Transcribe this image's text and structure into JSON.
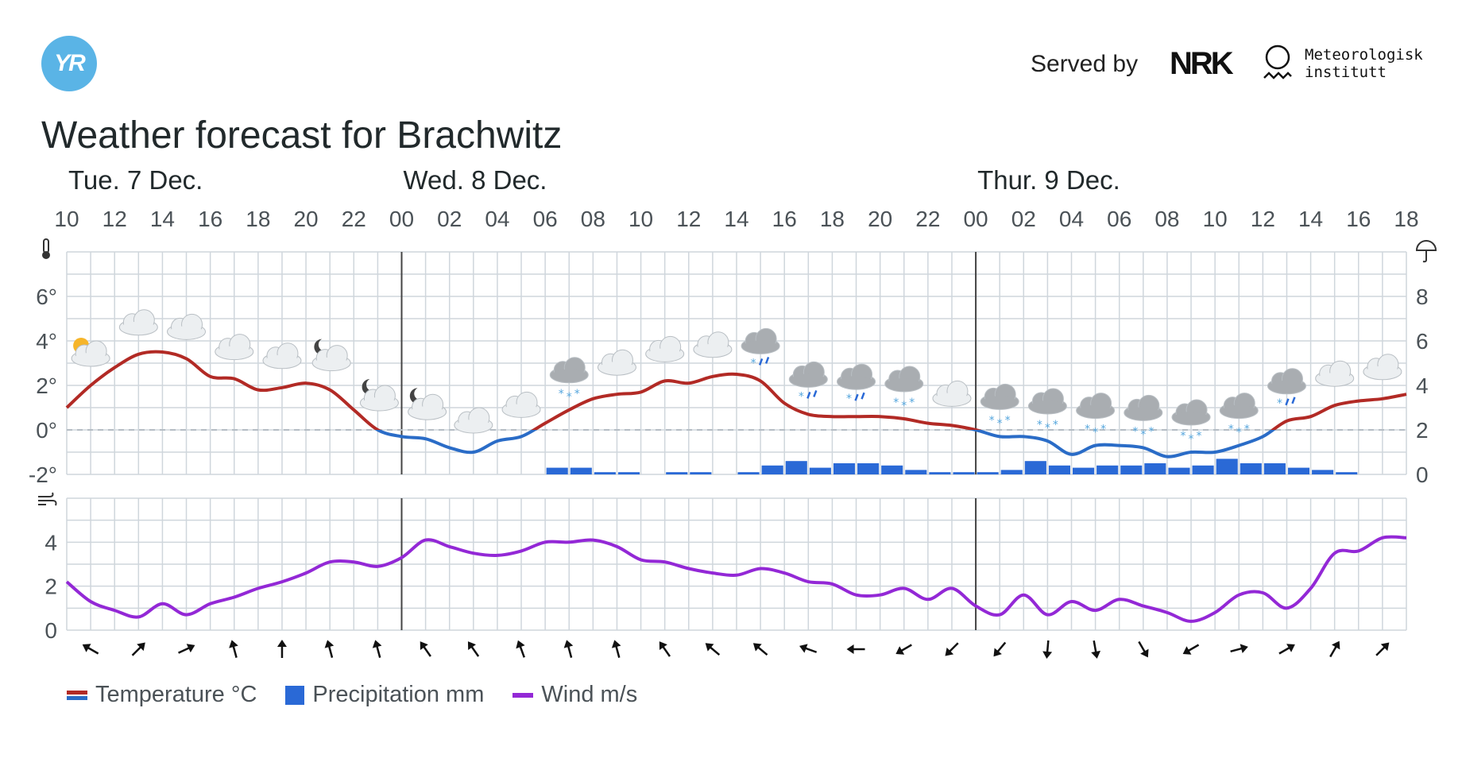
{
  "header": {
    "logo_text": "YR",
    "served_by": "Served by",
    "nrk_text": "NRK",
    "met_line1": "Meteorologisk",
    "met_line2": "institutt"
  },
  "title": "Weather forecast for Brachwitz",
  "legend": {
    "temperature": "Temperature °C",
    "precipitation": "Precipitation mm",
    "wind": "Wind m/s"
  },
  "colors": {
    "temp_warm": "#b22a25",
    "temp_cold": "#2a6cc7",
    "precip": "#2a69d6",
    "wind": "#9328d6",
    "grid": "#cfd6dc",
    "axis_text": "#4b5257"
  },
  "chart_data": {
    "type": "line",
    "days": [
      {
        "label": "Tue. 7 Dec.",
        "start_hour": 10
      },
      {
        "label": "Wed. 8 Dec.",
        "start_hour": 24
      },
      {
        "label": "Thur. 9 Dec.",
        "start_hour": 48
      }
    ],
    "x_start_hour": 10,
    "x_end_hour": 66,
    "x_tick_labels": [
      "10",
      "12",
      "14",
      "16",
      "18",
      "20",
      "22",
      "00",
      "02",
      "04",
      "06",
      "08",
      "10",
      "12",
      "14",
      "16",
      "18",
      "20",
      "22",
      "00",
      "02",
      "04",
      "06",
      "08",
      "10",
      "12",
      "14",
      "16",
      "18"
    ],
    "temperature": {
      "name": "Temperature °C",
      "unit": "°C",
      "ylim": [
        -2,
        8
      ],
      "y_ticks": [
        "-2°",
        "0°",
        "2°",
        "4°",
        "6°"
      ],
      "hours": [
        10,
        11,
        12,
        13,
        14,
        15,
        16,
        17,
        18,
        19,
        20,
        21,
        22,
        23,
        24,
        25,
        26,
        27,
        28,
        29,
        30,
        31,
        32,
        33,
        34,
        35,
        36,
        37,
        38,
        39,
        40,
        41,
        42,
        43,
        44,
        45,
        46,
        47,
        48,
        49,
        50,
        51,
        52,
        53,
        54,
        55,
        56,
        57,
        58,
        59,
        60,
        61,
        62,
        63,
        64,
        65,
        66
      ],
      "values": [
        1.0,
        2.0,
        2.8,
        3.4,
        3.5,
        3.2,
        2.4,
        2.3,
        1.8,
        1.9,
        2.1,
        1.8,
        0.9,
        0.0,
        -0.3,
        -0.4,
        -0.8,
        -1.0,
        -0.5,
        -0.3,
        0.3,
        0.9,
        1.4,
        1.6,
        1.7,
        2.2,
        2.1,
        2.4,
        2.5,
        2.2,
        1.2,
        0.7,
        0.6,
        0.6,
        0.6,
        0.5,
        0.3,
        0.2,
        0.0,
        -0.3,
        -0.3,
        -0.5,
        -1.1,
        -0.7,
        -0.7,
        -0.8,
        -1.2,
        -1.0,
        -1.0,
        -0.7,
        -0.3,
        0.4,
        0.6,
        1.1,
        1.3,
        1.4,
        1.6
      ]
    },
    "precipitation": {
      "name": "Precipitation mm",
      "unit": "mm",
      "ylim": [
        0,
        10
      ],
      "y_ticks": [
        "0",
        "2",
        "4",
        "6",
        "8"
      ],
      "hour_starts": [
        10,
        11,
        12,
        13,
        14,
        15,
        16,
        17,
        18,
        19,
        20,
        21,
        22,
        23,
        24,
        25,
        26,
        27,
        28,
        29,
        30,
        31,
        32,
        33,
        34,
        35,
        36,
        37,
        38,
        39,
        40,
        41,
        42,
        43,
        44,
        45,
        46,
        47,
        48,
        49,
        50,
        51,
        52,
        53,
        54,
        55,
        56,
        57,
        58,
        59,
        60,
        61,
        62,
        63,
        64,
        65
      ],
      "values": [
        0,
        0,
        0,
        0,
        0,
        0,
        0,
        0,
        0,
        0,
        0,
        0,
        0,
        0,
        0,
        0,
        0,
        0,
        0,
        0,
        0.3,
        0.3,
        0.1,
        0.1,
        0,
        0.1,
        0.1,
        0,
        0.1,
        0.4,
        0.6,
        0.3,
        0.5,
        0.5,
        0.4,
        0.2,
        0.1,
        0.1,
        0.1,
        0.2,
        0.6,
        0.4,
        0.3,
        0.4,
        0.4,
        0.5,
        0.3,
        0.4,
        0.7,
        0.5,
        0.5,
        0.3,
        0.2,
        0.1,
        0,
        0
      ]
    },
    "wind": {
      "name": "Wind m/s",
      "unit": "m/s",
      "ylim": [
        0,
        6
      ],
      "y_ticks": [
        "0",
        "2",
        "4"
      ],
      "hours": [
        10,
        11,
        12,
        13,
        14,
        15,
        16,
        17,
        18,
        19,
        20,
        21,
        22,
        23,
        24,
        25,
        26,
        27,
        28,
        29,
        30,
        31,
        32,
        33,
        34,
        35,
        36,
        37,
        38,
        39,
        40,
        41,
        42,
        43,
        44,
        45,
        46,
        47,
        48,
        49,
        50,
        51,
        52,
        53,
        54,
        55,
        56,
        57,
        58,
        59,
        60,
        61,
        62,
        63,
        64,
        65,
        66
      ],
      "values": [
        2.2,
        1.3,
        0.9,
        0.6,
        1.2,
        0.7,
        1.2,
        1.5,
        1.9,
        2.2,
        2.6,
        3.1,
        3.1,
        2.9,
        3.3,
        4.1,
        3.8,
        3.5,
        3.4,
        3.6,
        4.0,
        4.0,
        4.1,
        3.8,
        3.2,
        3.1,
        2.8,
        2.6,
        2.5,
        2.8,
        2.6,
        2.2,
        2.1,
        1.6,
        1.6,
        1.9,
        1.4,
        1.9,
        1.1,
        0.7,
        1.6,
        0.7,
        1.3,
        0.9,
        1.4,
        1.1,
        0.8,
        0.4,
        0.8,
        1.6,
        1.7,
        1.0,
        1.9,
        3.5,
        3.6,
        4.2,
        4.2
      ]
    },
    "weather_icons": [
      {
        "hour": 11,
        "type": "partly-sunny"
      },
      {
        "hour": 13,
        "type": "cloudy"
      },
      {
        "hour": 15,
        "type": "cloudy"
      },
      {
        "hour": 17,
        "type": "cloudy"
      },
      {
        "hour": 19,
        "type": "cloudy"
      },
      {
        "hour": 21,
        "type": "partly-cloudy-night"
      },
      {
        "hour": 23,
        "type": "partly-cloudy-night"
      },
      {
        "hour": 25,
        "type": "partly-cloudy-night"
      },
      {
        "hour": 27,
        "type": "cloudy"
      },
      {
        "hour": 29,
        "type": "cloudy"
      },
      {
        "hour": 31,
        "type": "snow"
      },
      {
        "hour": 33,
        "type": "cloudy"
      },
      {
        "hour": 35,
        "type": "cloudy"
      },
      {
        "hour": 37,
        "type": "cloudy"
      },
      {
        "hour": 39,
        "type": "sleet"
      },
      {
        "hour": 41,
        "type": "sleet"
      },
      {
        "hour": 43,
        "type": "sleet"
      },
      {
        "hour": 45,
        "type": "snow"
      },
      {
        "hour": 47,
        "type": "cloudy"
      },
      {
        "hour": 49,
        "type": "snow"
      },
      {
        "hour": 51,
        "type": "snow"
      },
      {
        "hour": 53,
        "type": "snow"
      },
      {
        "hour": 55,
        "type": "snow"
      },
      {
        "hour": 57,
        "type": "snow"
      },
      {
        "hour": 59,
        "type": "snow"
      },
      {
        "hour": 61,
        "type": "sleet"
      },
      {
        "hour": 63,
        "type": "cloudy"
      },
      {
        "hour": 65,
        "type": "cloudy"
      }
    ],
    "wind_arrows": [
      {
        "hour": 11,
        "rotation_deg": 300
      },
      {
        "hour": 13,
        "rotation_deg": 45
      },
      {
        "hour": 15,
        "rotation_deg": 65
      },
      {
        "hour": 17,
        "rotation_deg": 345
      },
      {
        "hour": 19,
        "rotation_deg": 0
      },
      {
        "hour": 21,
        "rotation_deg": 345
      },
      {
        "hour": 23,
        "rotation_deg": 345
      },
      {
        "hour": 25,
        "rotation_deg": 325
      },
      {
        "hour": 27,
        "rotation_deg": 325
      },
      {
        "hour": 29,
        "rotation_deg": 340
      },
      {
        "hour": 31,
        "rotation_deg": 345
      },
      {
        "hour": 33,
        "rotation_deg": 345
      },
      {
        "hour": 35,
        "rotation_deg": 325
      },
      {
        "hour": 37,
        "rotation_deg": 310
      },
      {
        "hour": 39,
        "rotation_deg": 310
      },
      {
        "hour": 41,
        "rotation_deg": 290
      },
      {
        "hour": 43,
        "rotation_deg": 270
      },
      {
        "hour": 45,
        "rotation_deg": 240
      },
      {
        "hour": 47,
        "rotation_deg": 225
      },
      {
        "hour": 49,
        "rotation_deg": 220
      },
      {
        "hour": 51,
        "rotation_deg": 185
      },
      {
        "hour": 53,
        "rotation_deg": 170
      },
      {
        "hour": 55,
        "rotation_deg": 150
      },
      {
        "hour": 57,
        "rotation_deg": 240
      },
      {
        "hour": 59,
        "rotation_deg": 75
      },
      {
        "hour": 61,
        "rotation_deg": 60
      },
      {
        "hour": 63,
        "rotation_deg": 30
      },
      {
        "hour": 65,
        "rotation_deg": 45
      }
    ]
  }
}
